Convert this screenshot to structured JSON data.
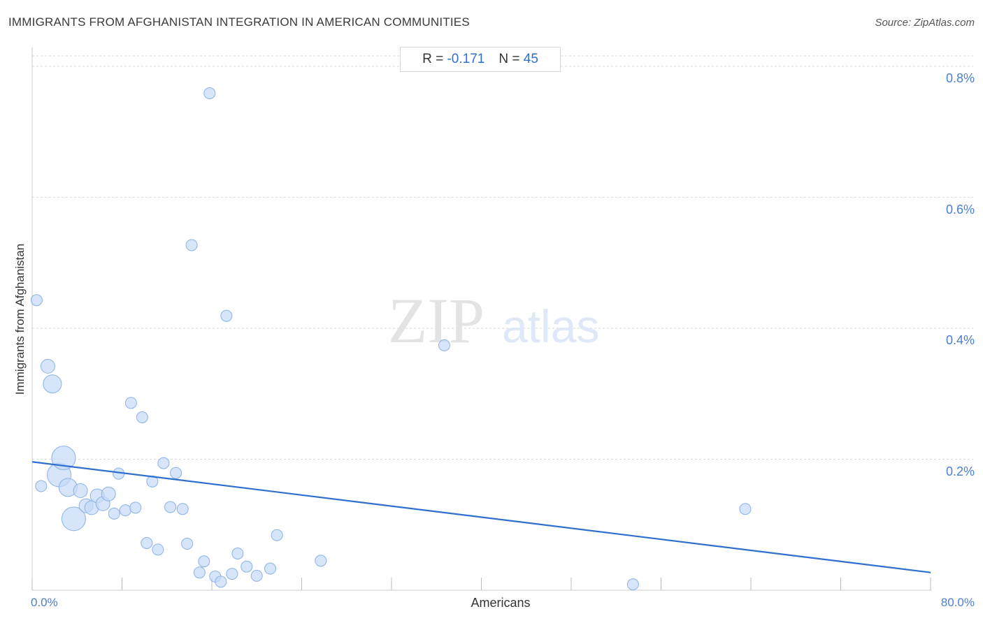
{
  "header": {
    "title": "IMMIGRANTS FROM AFGHANISTAN INTEGRATION IN AMERICAN COMMUNITIES",
    "source": "Source: ZipAtlas.com"
  },
  "stats": {
    "r_label": "R =",
    "r_value": "-0.171",
    "n_label": "N =",
    "n_value": "45"
  },
  "colors": {
    "point_fill": "#c5daf6",
    "point_stroke": "#8ab2e6",
    "trend_line": "#2f6fd0",
    "grid": "#d9d9d9",
    "tick_label": "#4a7fd4"
  },
  "chart_data": {
    "type": "scatter",
    "title": "IMMIGRANTS FROM AFGHANISTAN INTEGRATION IN AMERICAN COMMUNITIES",
    "xlabel": "Americans",
    "ylabel": "Immigrants from Afghanistan",
    "xlim": [
      0,
      80
    ],
    "ylim": [
      0,
      0.8
    ],
    "x_unit": "%",
    "y_unit": "%",
    "grid": true,
    "x_tick_labels": [
      "0.0%",
      "80.0%"
    ],
    "y_ticks": [
      {
        "value": 0.2,
        "label": "0.2%"
      },
      {
        "value": 0.4,
        "label": "0.4%"
      },
      {
        "value": 0.6,
        "label": "0.6%"
      },
      {
        "value": 0.8,
        "label": "0.8%"
      }
    ],
    "trend_line": {
      "x": [
        0,
        80
      ],
      "y": [
        0.196,
        0.027
      ]
    },
    "points": [
      {
        "x": 0.4,
        "y": 0.443,
        "size": "small"
      },
      {
        "x": 0.8,
        "y": 0.159,
        "size": "small"
      },
      {
        "x": 1.4,
        "y": 0.342,
        "size": "medium"
      },
      {
        "x": 1.8,
        "y": 0.315,
        "size": "large"
      },
      {
        "x": 2.4,
        "y": 0.176,
        "size": "xlarge"
      },
      {
        "x": 2.8,
        "y": 0.202,
        "size": "xlarge"
      },
      {
        "x": 3.2,
        "y": 0.157,
        "size": "large"
      },
      {
        "x": 3.7,
        "y": 0.109,
        "size": "xlarge"
      },
      {
        "x": 4.3,
        "y": 0.152,
        "size": "medium"
      },
      {
        "x": 4.8,
        "y": 0.129,
        "size": "medium"
      },
      {
        "x": 5.3,
        "y": 0.126,
        "size": "medium"
      },
      {
        "x": 5.8,
        "y": 0.144,
        "size": "medium"
      },
      {
        "x": 6.3,
        "y": 0.132,
        "size": "medium"
      },
      {
        "x": 6.8,
        "y": 0.147,
        "size": "medium"
      },
      {
        "x": 7.3,
        "y": 0.117,
        "size": "small"
      },
      {
        "x": 7.7,
        "y": 0.178,
        "size": "small"
      },
      {
        "x": 8.3,
        "y": 0.122,
        "size": "small"
      },
      {
        "x": 8.8,
        "y": 0.286,
        "size": "small"
      },
      {
        "x": 9.2,
        "y": 0.126,
        "size": "small"
      },
      {
        "x": 9.8,
        "y": 0.264,
        "size": "small"
      },
      {
        "x": 10.2,
        "y": 0.072,
        "size": "small"
      },
      {
        "x": 10.7,
        "y": 0.166,
        "size": "small"
      },
      {
        "x": 11.2,
        "y": 0.062,
        "size": "small"
      },
      {
        "x": 11.7,
        "y": 0.194,
        "size": "small"
      },
      {
        "x": 12.3,
        "y": 0.127,
        "size": "small"
      },
      {
        "x": 12.8,
        "y": 0.179,
        "size": "small"
      },
      {
        "x": 13.4,
        "y": 0.124,
        "size": "small"
      },
      {
        "x": 13.8,
        "y": 0.071,
        "size": "small"
      },
      {
        "x": 14.2,
        "y": 0.527,
        "size": "small"
      },
      {
        "x": 14.9,
        "y": 0.027,
        "size": "small"
      },
      {
        "x": 15.3,
        "y": 0.044,
        "size": "small"
      },
      {
        "x": 15.8,
        "y": 0.759,
        "size": "small"
      },
      {
        "x": 16.3,
        "y": 0.021,
        "size": "small"
      },
      {
        "x": 16.8,
        "y": 0.013,
        "size": "small"
      },
      {
        "x": 17.3,
        "y": 0.419,
        "size": "small"
      },
      {
        "x": 17.8,
        "y": 0.025,
        "size": "small"
      },
      {
        "x": 18.3,
        "y": 0.056,
        "size": "small"
      },
      {
        "x": 19.1,
        "y": 0.036,
        "size": "small"
      },
      {
        "x": 20.0,
        "y": 0.022,
        "size": "small"
      },
      {
        "x": 21.2,
        "y": 0.033,
        "size": "small"
      },
      {
        "x": 21.8,
        "y": 0.084,
        "size": "small"
      },
      {
        "x": 25.7,
        "y": 0.045,
        "size": "small"
      },
      {
        "x": 36.7,
        "y": 0.374,
        "size": "small"
      },
      {
        "x": 53.5,
        "y": 0.009,
        "size": "small"
      },
      {
        "x": 63.5,
        "y": 0.124,
        "size": "small"
      }
    ]
  }
}
